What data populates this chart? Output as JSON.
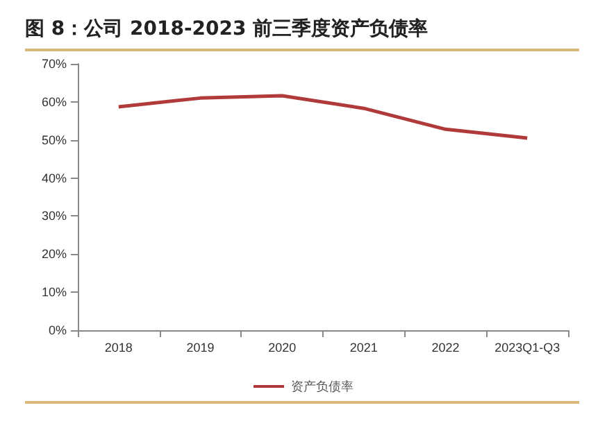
{
  "chart_data": {
    "type": "line",
    "title": "图 8：公司 2018-2023 前三季度资产负债率",
    "categories": [
      "2018",
      "2019",
      "2020",
      "2021",
      "2022",
      "2023Q1-Q3"
    ],
    "series": [
      {
        "name": "资产负债率",
        "color": "#b03a3a",
        "values": [
          58.7,
          61.0,
          61.6,
          58.3,
          52.8,
          50.5
        ]
      }
    ],
    "ylim": [
      0,
      70
    ],
    "yticks": [
      {
        "value": 0,
        "label": "0%"
      },
      {
        "value": 10,
        "label": "10%"
      },
      {
        "value": 20,
        "label": "20%"
      },
      {
        "value": 30,
        "label": "30%"
      },
      {
        "value": 40,
        "label": "40%"
      },
      {
        "value": 50,
        "label": "50%"
      },
      {
        "value": 60,
        "label": "60%"
      },
      {
        "value": 70,
        "label": "70%"
      }
    ],
    "grid": false,
    "legend": "bottom",
    "marker": "none",
    "line_style": "solid"
  }
}
